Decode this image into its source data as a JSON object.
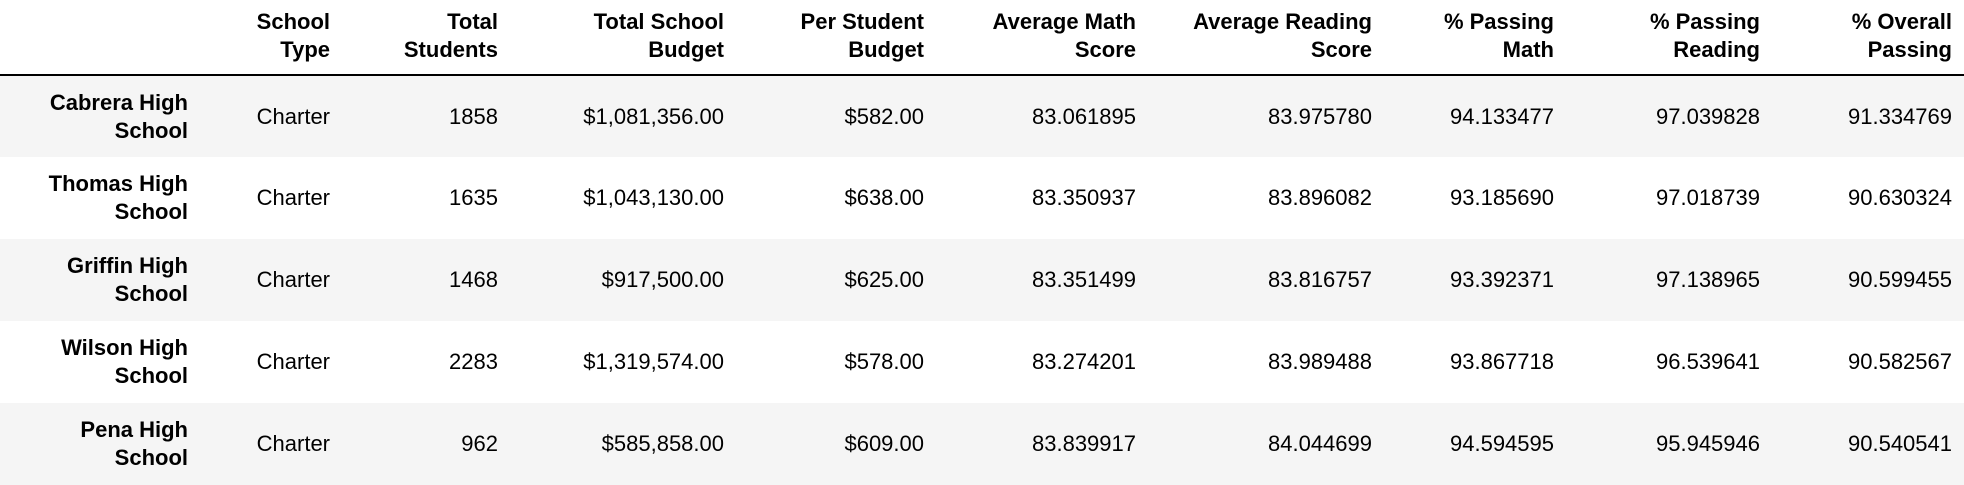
{
  "table": {
    "index_header": "",
    "columns": [
      "School Type",
      "Total Students",
      "Total School Budget",
      "Per Student Budget",
      "Average Math Score",
      "Average Reading Score",
      "% Passing Math",
      "% Passing Reading",
      "% Overall Passing"
    ],
    "rows": [
      {
        "name": "Cabrera High School",
        "cells": [
          "Charter",
          "1858",
          "$1,081,356.00",
          "$582.00",
          "83.061895",
          "83.975780",
          "94.133477",
          "97.039828",
          "91.334769"
        ]
      },
      {
        "name": "Thomas High School",
        "cells": [
          "Charter",
          "1635",
          "$1,043,130.00",
          "$638.00",
          "83.350937",
          "83.896082",
          "93.185690",
          "97.018739",
          "90.630324"
        ]
      },
      {
        "name": "Griffin High School",
        "cells": [
          "Charter",
          "1468",
          "$917,500.00",
          "$625.00",
          "83.351499",
          "83.816757",
          "93.392371",
          "97.138965",
          "90.599455"
        ]
      },
      {
        "name": "Wilson High School",
        "cells": [
          "Charter",
          "2283",
          "$1,319,574.00",
          "$578.00",
          "83.274201",
          "83.989488",
          "93.867718",
          "96.539641",
          "90.582567"
        ]
      },
      {
        "name": "Pena High School",
        "cells": [
          "Charter",
          "962",
          "$585,858.00",
          "$609.00",
          "83.839917",
          "84.044699",
          "94.594595",
          "95.945946",
          "90.540541"
        ]
      }
    ]
  }
}
